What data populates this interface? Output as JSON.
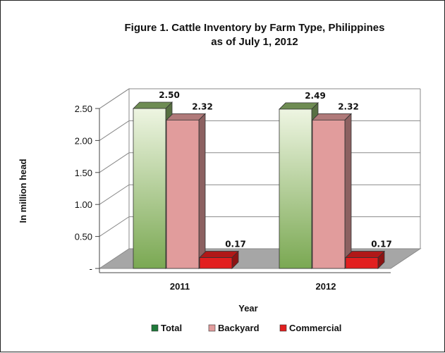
{
  "chart_data": {
    "type": "bar",
    "title": "Figure 1.  Cattle Inventory by Farm Type, Philippines",
    "subtitle": "as of July 1, 2012",
    "xlabel": "Year",
    "ylabel": "In million head",
    "categories": [
      "2011",
      "2012"
    ],
    "series": [
      {
        "name": "Total",
        "values": [
          2.5,
          2.49
        ],
        "labels": [
          "2.50",
          "2.49"
        ],
        "color": "#8db36a"
      },
      {
        "name": "Backyard",
        "values": [
          2.32,
          2.32
        ],
        "labels": [
          "2.32",
          "2.32"
        ],
        "color": "#e19c9c"
      },
      {
        "name": "Commercial",
        "values": [
          0.17,
          0.17
        ],
        "labels": [
          "0.17",
          "0.17"
        ],
        "color": "#e21f1f"
      }
    ],
    "yticks": [
      "-",
      "0.50",
      "1.00",
      "1.50",
      "2.00",
      "2.50"
    ],
    "ytick_values": [
      0,
      0.5,
      1.0,
      1.5,
      2.0,
      2.5
    ],
    "ylim": [
      0,
      2.5
    ],
    "grid": true,
    "legend_position": "bottom"
  }
}
